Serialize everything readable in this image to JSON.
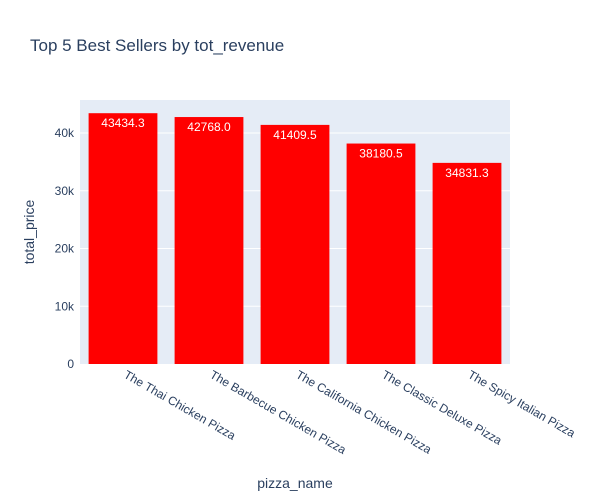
{
  "chart_data": {
    "type": "bar",
    "title": "Top 5 Best Sellers by tot_revenue",
    "xlabel": "pizza_name",
    "ylabel": "total_price",
    "categories": [
      "The Thai Chicken Pizza",
      "The Barbecue Chicken Pizza",
      "The California Chicken Pizza",
      "The Classic Deluxe Pizza",
      "The Spicy Italian Pizza"
    ],
    "values": [
      43434.3,
      42768.0,
      41409.5,
      38180.5,
      34831.3
    ],
    "value_labels": [
      "43434.3",
      "42768.0",
      "41409.5",
      "38180.5",
      "34831.3"
    ],
    "ylim": [
      0,
      45720
    ],
    "yticks": [
      0,
      10000,
      20000,
      30000,
      40000
    ],
    "ytick_labels": [
      "0",
      "10k",
      "20k",
      "30k",
      "40k"
    ],
    "grid": true,
    "bar_color": "#ff0000",
    "plot_bg": "#e5ecf6"
  }
}
